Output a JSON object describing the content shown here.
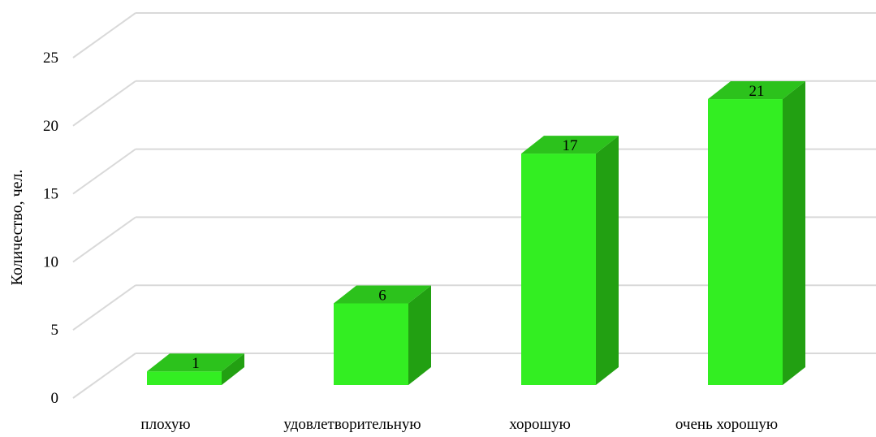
{
  "chart_data": {
    "type": "bar",
    "style": "3d-column",
    "categories": [
      "плохую",
      "удовлетворительную",
      "хорошую",
      "очень хорошую"
    ],
    "values": [
      1,
      6,
      17,
      21
    ],
    "data_labels": [
      "1",
      "6",
      "17",
      "21"
    ],
    "ylabel": "Количество, чел.",
    "xlabel": "",
    "ylim": [
      0,
      25
    ],
    "yticks": [
      0,
      5,
      10,
      15,
      20,
      25
    ],
    "ytick_labels": [
      "0",
      "5",
      "10",
      "15",
      "20",
      "25"
    ],
    "grid": true,
    "legend": "none",
    "colors": {
      "bar_front": "#33ee22",
      "bar_top": "#2cc21c",
      "bar_side": "#22a012",
      "grid": "#d9d9d9"
    }
  }
}
